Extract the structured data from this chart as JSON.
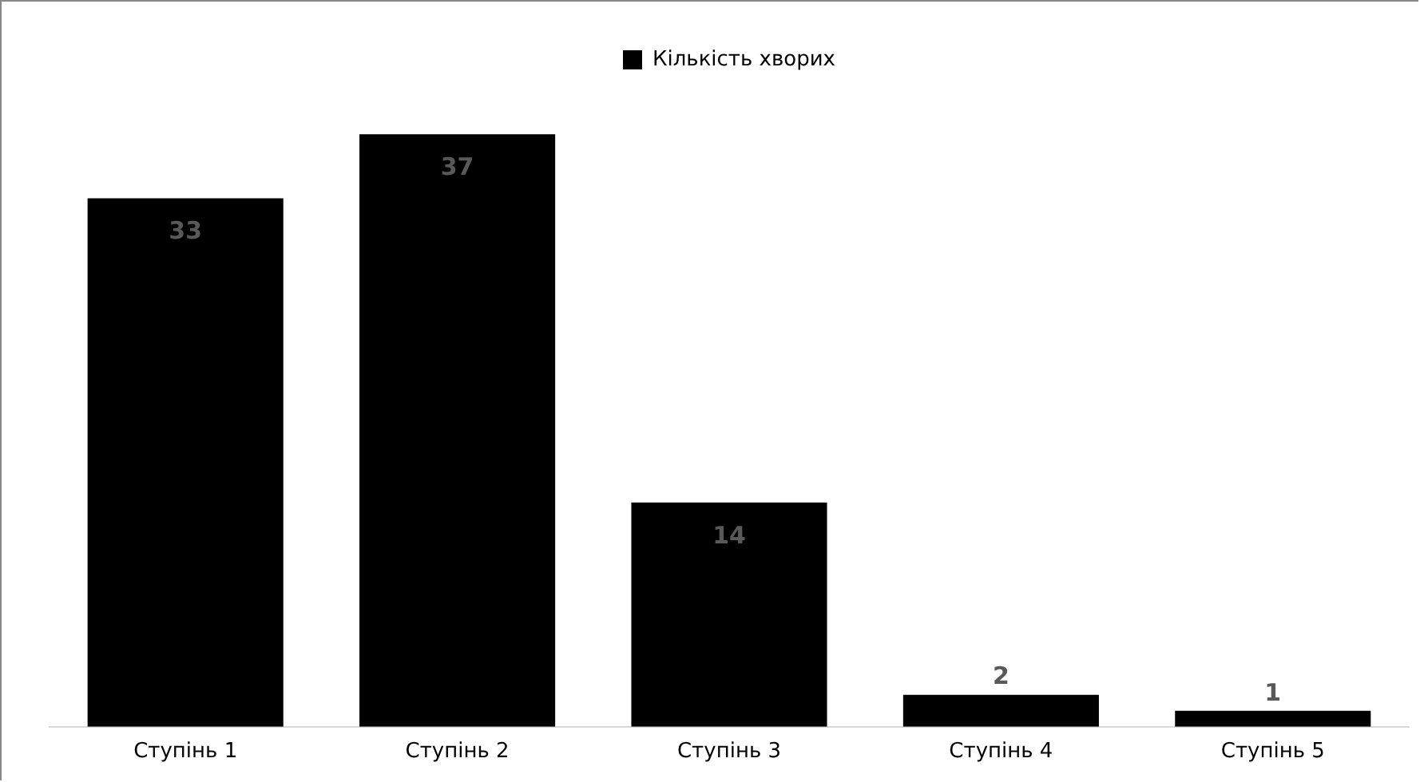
{
  "chart_data": {
    "type": "bar",
    "categories": [
      "Ступінь 1",
      "Ступінь 2",
      "Ступінь 3",
      "Ступінь 4",
      "Ступінь 5"
    ],
    "series": [
      {
        "name": "Кількість хворих",
        "color": "#000000",
        "values": [
          33,
          37,
          14,
          2,
          1
        ]
      }
    ],
    "data_labels": true,
    "legend": "top",
    "grid": false,
    "tick_labels": "x"
  }
}
